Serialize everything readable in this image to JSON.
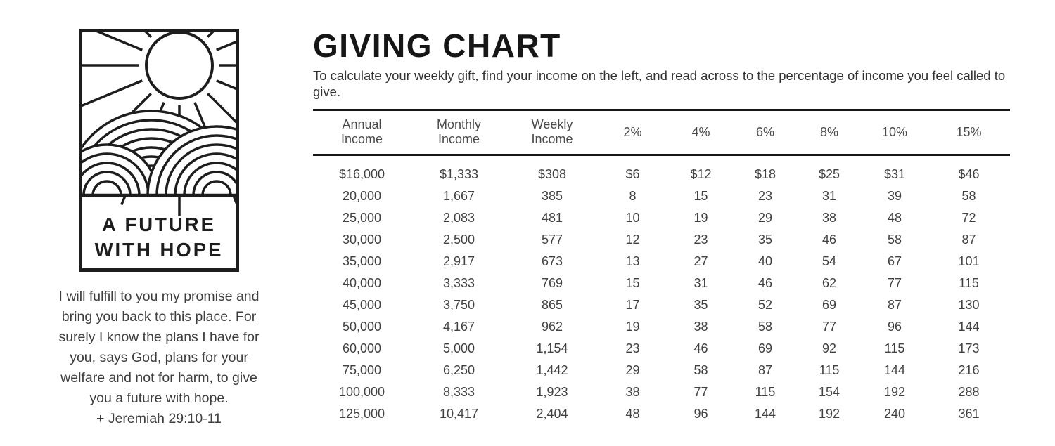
{
  "logo": {
    "name": "A Future With Hope logo",
    "line1": "A FUTURE",
    "line2": "WITH HOPE"
  },
  "verse": {
    "lines": [
      "I will fulfill to you my promise and",
      "bring you back to this place. For",
      "surely I know the plans I have for",
      "you, says God, plans for your",
      "welfare and not for harm, to give",
      "you a future with hope.",
      "+ Jeremiah 29:10-11"
    ]
  },
  "header": {
    "title": "GIVING CHART",
    "subtitle": "To calculate your weekly gift, find your income on the left, and read across to the percentage of income you feel called to give."
  },
  "chart_data": {
    "type": "table",
    "title": "Giving Chart",
    "columns": [
      [
        "Annual",
        "Income"
      ],
      [
        "Monthly",
        "Income"
      ],
      [
        "Weekly",
        "Income"
      ],
      [
        "2%"
      ],
      [
        "4%"
      ],
      [
        "6%"
      ],
      [
        "8%"
      ],
      [
        "10%"
      ],
      [
        "15%"
      ]
    ],
    "rows": [
      [
        "$16,000",
        "$1,333",
        "$308",
        "$6",
        "$12",
        "$18",
        "$25",
        "$31",
        "$46"
      ],
      [
        "20,000",
        "1,667",
        "385",
        "8",
        "15",
        "23",
        "31",
        "39",
        "58"
      ],
      [
        "25,000",
        "2,083",
        "481",
        "10",
        "19",
        "29",
        "38",
        "48",
        "72"
      ],
      [
        "30,000",
        "2,500",
        "577",
        "12",
        "23",
        "35",
        "46",
        "58",
        "87"
      ],
      [
        "35,000",
        "2,917",
        "673",
        "13",
        "27",
        "40",
        "54",
        "67",
        "101"
      ],
      [
        "40,000",
        "3,333",
        "769",
        "15",
        "31",
        "46",
        "62",
        "77",
        "115"
      ],
      [
        "45,000",
        "3,750",
        "865",
        "17",
        "35",
        "52",
        "69",
        "87",
        "130"
      ],
      [
        "50,000",
        "4,167",
        "962",
        "19",
        "38",
        "58",
        "77",
        "96",
        "144"
      ],
      [
        "60,000",
        "5,000",
        "1,154",
        "23",
        "46",
        "69",
        "92",
        "115",
        "173"
      ],
      [
        "75,000",
        "6,250",
        "1,442",
        "29",
        "58",
        "87",
        "115",
        "144",
        "216"
      ],
      [
        "100,000",
        "8,333",
        "1,923",
        "38",
        "77",
        "115",
        "154",
        "192",
        "288"
      ],
      [
        "125,000",
        "10,417",
        "2,404",
        "48",
        "96",
        "144",
        "192",
        "240",
        "361"
      ]
    ],
    "colors": {
      "ink": "#1d1d1d",
      "text": "#414141"
    }
  }
}
